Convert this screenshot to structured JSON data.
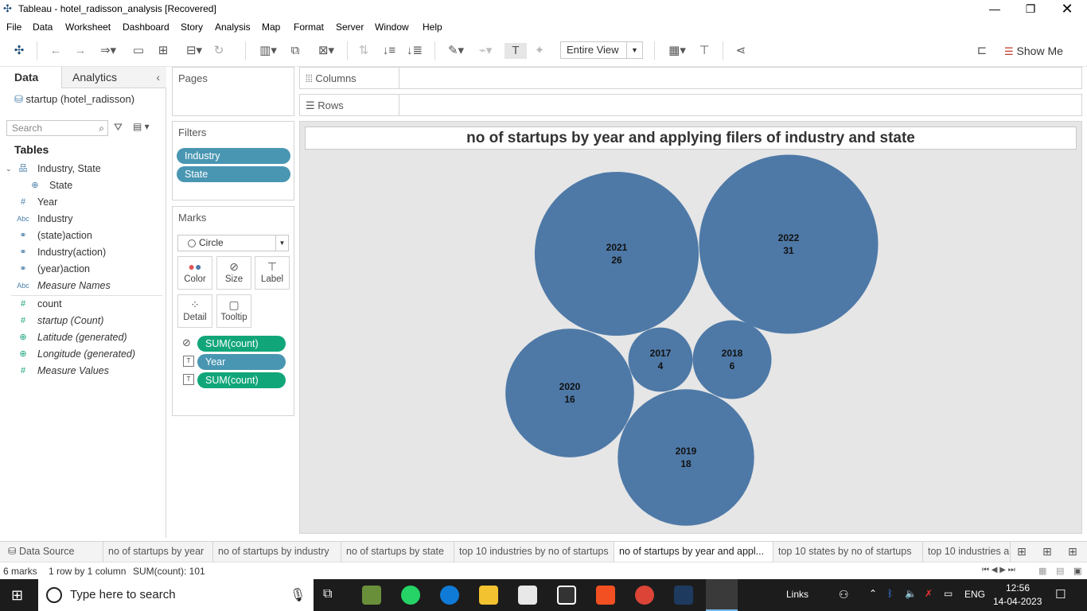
{
  "window": {
    "title": "Tableau - hotel_radisson_analysis [Recovered]"
  },
  "menu": [
    "File",
    "Data",
    "Worksheet",
    "Dashboard",
    "Story",
    "Analysis",
    "Map",
    "Format",
    "Server",
    "Window",
    "Help"
  ],
  "toolbar": {
    "fit_mode": "Entire View",
    "show_me": "Show Me"
  },
  "data_pane": {
    "tab_data": "Data",
    "tab_analytics": "Analytics",
    "datasource": "startup (hotel_radisson)",
    "search_placeholder": "Search",
    "tables_heading": "Tables",
    "fields": [
      {
        "label": "Industry, State",
        "icon": "hierarchy-icon",
        "glyph": "品"
      },
      {
        "label": "State",
        "icon": "globe-icon",
        "glyph": "⊕"
      },
      {
        "label": "Year",
        "icon": "number-icon",
        "glyph": "#"
      },
      {
        "label": "Industry",
        "icon": "string-icon",
        "glyph": "Abc"
      },
      {
        "label": "(state)action",
        "icon": "set-icon",
        "glyph": "⚭"
      },
      {
        "label": "Industry(action)",
        "icon": "set-icon",
        "glyph": "⚭"
      },
      {
        "label": "(year)action",
        "icon": "set-icon",
        "glyph": "⚭"
      },
      {
        "label": "Measure Names",
        "icon": "string-icon",
        "glyph": "Abc"
      },
      {
        "label": "count",
        "icon": "number-icon",
        "glyph": "#"
      },
      {
        "label": "startup (Count)",
        "icon": "number-icon",
        "glyph": "#"
      },
      {
        "label": "Latitude (generated)",
        "icon": "globe-icon",
        "glyph": "⊕"
      },
      {
        "label": "Longitude (generated)",
        "icon": "globe-icon",
        "glyph": "⊕"
      },
      {
        "label": "Measure Values",
        "icon": "number-icon",
        "glyph": "#"
      }
    ]
  },
  "pages": {
    "title": "Pages"
  },
  "filters": {
    "title": "Filters",
    "items": [
      "Industry",
      "State"
    ]
  },
  "marks": {
    "title": "Marks",
    "type": "Circle",
    "buttons": [
      "Color",
      "Size",
      "Label",
      "Detail",
      "Tooltip"
    ],
    "pills": [
      "SUM(count)",
      "Year",
      "SUM(count)"
    ]
  },
  "shelves": {
    "columns": "Columns",
    "rows": "Rows"
  },
  "viz": {
    "title": "no of startups by year and applying filers of  industry and state",
    "bubble_color": "#4e79a7"
  },
  "chart_data": {
    "type": "packed-bubble",
    "title": "no of startups by year and applying filers of  industry and state",
    "points": [
      {
        "label": "2017",
        "value": 4
      },
      {
        "label": "2018",
        "value": 6
      },
      {
        "label": "2019",
        "value": 18
      },
      {
        "label": "2020",
        "value": 16
      },
      {
        "label": "2021",
        "value": 26
      },
      {
        "label": "2022",
        "value": 31
      }
    ]
  },
  "sheet_tabs": {
    "data_source": "Data Source",
    "tabs": [
      "no of startups by year",
      "no of startups by industry",
      "no of startups by state",
      "top 10 industries by no of startups",
      "no of startups by year and appl...",
      "top 10 states by no of startups",
      "top 10 industries a"
    ],
    "active_index": 4
  },
  "status": {
    "marks": "6 marks",
    "dims": "1 row by 1 column",
    "sum": "SUM(count): 101"
  },
  "taskbar": {
    "search_placeholder": "Type here to search",
    "links": "Links",
    "lang": "ENG",
    "time": "12:56",
    "date": "14-04-2023"
  }
}
